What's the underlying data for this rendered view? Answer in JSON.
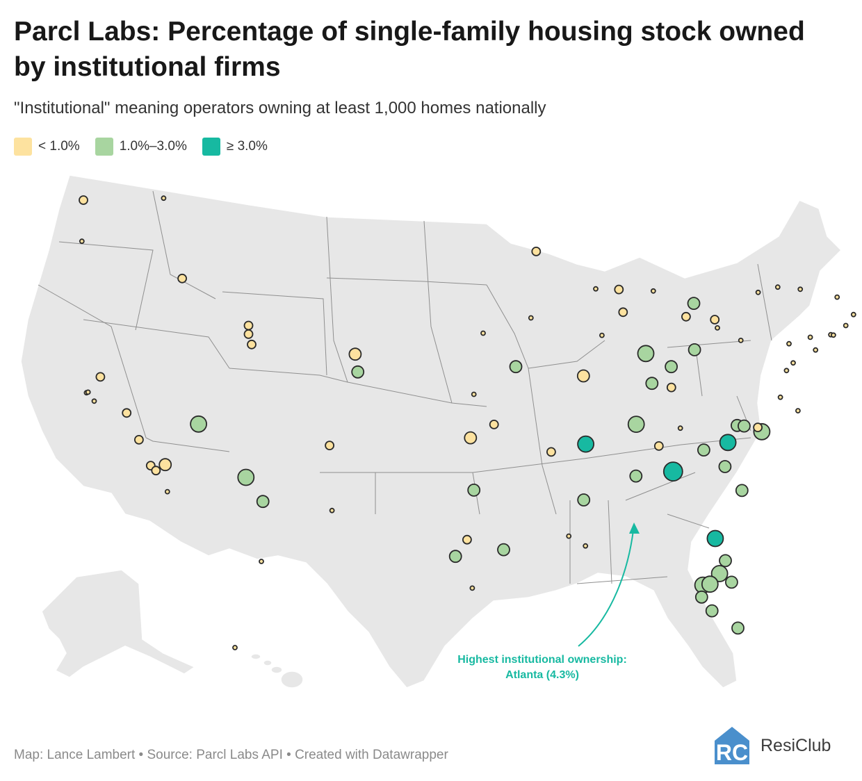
{
  "header": {
    "title": "Parcl Labs: Percentage of single-family housing stock owned by institutional firms",
    "subtitle": "\"Institutional\" meaning operators owning at least 1,000 homes nationally"
  },
  "legend": [
    {
      "label": "< 1.0%",
      "color": "#fde29f"
    },
    {
      "label": "1.0%–3.0%",
      "color": "#a8d5a0"
    },
    {
      "label": "≥ 3.0%",
      "color": "#17b9a1"
    }
  ],
  "annotation": {
    "line1": "Highest institutional ownership:",
    "line2": "Atlanta (4.3%)",
    "color": "#17b9a1"
  },
  "footer": {
    "credits": "Map: Lance Lambert • Source: Parcl Labs API • Created with Datawrapper",
    "brand": "ResiClub",
    "brand_color": "#4a8fcc"
  },
  "map": {
    "land_color": "#e7e7e7",
    "border_color": "#8f8f8f",
    "bucket_colors": {
      "low": "#fde29f",
      "mid": "#a8d5a0",
      "high": "#17b9a1"
    }
  },
  "chart_data": {
    "type": "bubble-map",
    "title": "Parcl Labs: Percentage of single-family housing stock owned by institutional firms",
    "value_unit": "% of single-family housing stock",
    "highlight": {
      "market": "Atlanta",
      "value": 4.3
    },
    "points": [
      {
        "lon": -122.6,
        "lat": 47.6,
        "bucket": "low",
        "size": "small"
      },
      {
        "lon": -117.4,
        "lat": 47.7,
        "bucket": "low",
        "size": "tiny"
      },
      {
        "lon": -122.7,
        "lat": 45.5,
        "bucket": "low",
        "size": "tiny"
      },
      {
        "lon": -116.2,
        "lat": 43.6,
        "bucket": "low",
        "size": "small"
      },
      {
        "lon": -111.9,
        "lat": 41.2,
        "bucket": "low",
        "size": "small"
      },
      {
        "lon": -111.9,
        "lat": 40.76,
        "bucket": "low",
        "size": "small"
      },
      {
        "lon": -111.7,
        "lat": 40.23,
        "bucket": "low",
        "size": "small"
      },
      {
        "lon": -121.5,
        "lat": 38.58,
        "bucket": "low",
        "size": "small"
      },
      {
        "lon": -122.4,
        "lat": 37.77,
        "bucket": "low",
        "size": "tiny"
      },
      {
        "lon": -121.9,
        "lat": 37.34,
        "bucket": "low",
        "size": "tiny"
      },
      {
        "lon": -122.3,
        "lat": 37.8,
        "bucket": "low",
        "size": "tiny"
      },
      {
        "lon": -119.8,
        "lat": 36.74,
        "bucket": "low",
        "size": "small"
      },
      {
        "lon": -119.0,
        "lat": 35.37,
        "bucket": "low",
        "size": "small"
      },
      {
        "lon": -118.24,
        "lat": 34.05,
        "bucket": "low",
        "size": "small"
      },
      {
        "lon": -117.9,
        "lat": 33.8,
        "bucket": "low",
        "size": "small"
      },
      {
        "lon": -117.3,
        "lat": 34.1,
        "bucket": "low",
        "size": "medium"
      },
      {
        "lon": -117.16,
        "lat": 32.72,
        "bucket": "low",
        "size": "tiny"
      },
      {
        "lon": -115.14,
        "lat": 36.17,
        "bucket": "mid",
        "size": "large"
      },
      {
        "lon": -112.07,
        "lat": 33.45,
        "bucket": "mid",
        "size": "large"
      },
      {
        "lon": -110.97,
        "lat": 32.22,
        "bucket": "mid",
        "size": "medium"
      },
      {
        "lon": -106.65,
        "lat": 35.08,
        "bucket": "low",
        "size": "small"
      },
      {
        "lon": -106.49,
        "lat": 31.76,
        "bucket": "low",
        "size": "tiny"
      },
      {
        "lon": -104.99,
        "lat": 39.74,
        "bucket": "low",
        "size": "medium"
      },
      {
        "lon": -104.82,
        "lat": 38.83,
        "bucket": "mid",
        "size": "medium"
      },
      {
        "lon": -96.7,
        "lat": 40.81,
        "bucket": "low",
        "size": "tiny"
      },
      {
        "lon": -97.3,
        "lat": 37.69,
        "bucket": "low",
        "size": "tiny"
      },
      {
        "lon": -94.58,
        "lat": 39.1,
        "bucket": "mid",
        "size": "medium"
      },
      {
        "lon": -97.52,
        "lat": 35.47,
        "bucket": "low",
        "size": "medium"
      },
      {
        "lon": -95.99,
        "lat": 36.15,
        "bucket": "low",
        "size": "small"
      },
      {
        "lon": -97.3,
        "lat": 32.8,
        "bucket": "mid",
        "size": "medium"
      },
      {
        "lon": -97.74,
        "lat": 30.27,
        "bucket": "low",
        "size": "small"
      },
      {
        "lon": -98.49,
        "lat": 29.42,
        "bucket": "mid",
        "size": "medium"
      },
      {
        "lon": -95.37,
        "lat": 29.76,
        "bucket": "mid",
        "size": "medium"
      },
      {
        "lon": -97.4,
        "lat": 27.8,
        "bucket": "low",
        "size": "tiny"
      },
      {
        "lon": -93.6,
        "lat": 41.59,
        "bucket": "low",
        "size": "tiny"
      },
      {
        "lon": -93.26,
        "lat": 44.98,
        "bucket": "low",
        "size": "small"
      },
      {
        "lon": -92.29,
        "lat": 34.75,
        "bucket": "low",
        "size": "small"
      },
      {
        "lon": -90.05,
        "lat": 35.15,
        "bucket": "high",
        "size": "large"
      },
      {
        "lon": -90.18,
        "lat": 32.3,
        "bucket": "mid",
        "size": "medium"
      },
      {
        "lon": -91.15,
        "lat": 30.45,
        "bucket": "low",
        "size": "tiny"
      },
      {
        "lon": -90.07,
        "lat": 29.95,
        "bucket": "low",
        "size": "tiny"
      },
      {
        "lon": -90.2,
        "lat": 38.63,
        "bucket": "low",
        "size": "medium"
      },
      {
        "lon": -89.0,
        "lat": 40.7,
        "bucket": "low",
        "size": "tiny"
      },
      {
        "lon": -87.63,
        "lat": 41.88,
        "bucket": "low",
        "size": "small"
      },
      {
        "lon": -89.4,
        "lat": 43.07,
        "bucket": "low",
        "size": "tiny"
      },
      {
        "lon": -87.9,
        "lat": 43.04,
        "bucket": "low",
        "size": "small"
      },
      {
        "lon": -86.16,
        "lat": 39.77,
        "bucket": "mid",
        "size": "large"
      },
      {
        "lon": -85.67,
        "lat": 42.96,
        "bucket": "low",
        "size": "tiny"
      },
      {
        "lon": -83.05,
        "lat": 42.33,
        "bucket": "mid",
        "size": "medium"
      },
      {
        "lon": -83.55,
        "lat": 41.65,
        "bucket": "low",
        "size": "small"
      },
      {
        "lon": -84.51,
        "lat": 39.1,
        "bucket": "mid",
        "size": "medium"
      },
      {
        "lon": -83.0,
        "lat": 39.96,
        "bucket": "mid",
        "size": "medium"
      },
      {
        "lon": -81.69,
        "lat": 41.5,
        "bucket": "low",
        "size": "small"
      },
      {
        "lon": -81.52,
        "lat": 41.08,
        "bucket": "low",
        "size": "tiny"
      },
      {
        "lon": -85.76,
        "lat": 38.25,
        "bucket": "mid",
        "size": "medium"
      },
      {
        "lon": -84.5,
        "lat": 38.04,
        "bucket": "low",
        "size": "small"
      },
      {
        "lon": -86.78,
        "lat": 36.16,
        "bucket": "mid",
        "size": "large"
      },
      {
        "lon": -83.92,
        "lat": 35.96,
        "bucket": "low",
        "size": "tiny"
      },
      {
        "lon": -85.31,
        "lat": 35.05,
        "bucket": "low",
        "size": "small"
      },
      {
        "lon": -86.8,
        "lat": 33.52,
        "bucket": "mid",
        "size": "medium"
      },
      {
        "lon": -84.39,
        "lat": 33.75,
        "bucket": "high",
        "size": "xlarge"
      },
      {
        "lon": -80.84,
        "lat": 35.23,
        "bucket": "high",
        "size": "large"
      },
      {
        "lon": -80.24,
        "lat": 36.1,
        "bucket": "mid",
        "size": "medium"
      },
      {
        "lon": -79.79,
        "lat": 36.07,
        "bucket": "mid",
        "size": "medium"
      },
      {
        "lon": -78.64,
        "lat": 35.78,
        "bucket": "mid",
        "size": "large"
      },
      {
        "lon": -78.9,
        "lat": 36.0,
        "bucket": "low",
        "size": "small"
      },
      {
        "lon": -81.03,
        "lat": 34.0,
        "bucket": "mid",
        "size": "medium"
      },
      {
        "lon": -82.4,
        "lat": 34.85,
        "bucket": "mid",
        "size": "medium"
      },
      {
        "lon": -79.93,
        "lat": 32.78,
        "bucket": "mid",
        "size": "medium"
      },
      {
        "lon": -81.66,
        "lat": 30.33,
        "bucket": "high",
        "size": "large"
      },
      {
        "lon": -81.38,
        "lat": 28.54,
        "bucket": "mid",
        "size": "large"
      },
      {
        "lon": -81.0,
        "lat": 29.2,
        "bucket": "mid",
        "size": "medium"
      },
      {
        "lon": -82.46,
        "lat": 27.95,
        "bucket": "mid",
        "size": "large"
      },
      {
        "lon": -82.0,
        "lat": 28.0,
        "bucket": "mid",
        "size": "large"
      },
      {
        "lon": -80.6,
        "lat": 28.1,
        "bucket": "mid",
        "size": "medium"
      },
      {
        "lon": -82.54,
        "lat": 27.34,
        "bucket": "mid",
        "size": "medium"
      },
      {
        "lon": -81.87,
        "lat": 26.64,
        "bucket": "mid",
        "size": "medium"
      },
      {
        "lon": -80.19,
        "lat": 25.76,
        "bucket": "mid",
        "size": "medium"
      },
      {
        "lon": -77.44,
        "lat": 37.54,
        "bucket": "low",
        "size": "tiny"
      },
      {
        "lon": -76.3,
        "lat": 36.85,
        "bucket": "low",
        "size": "tiny"
      },
      {
        "lon": -77.04,
        "lat": 38.9,
        "bucket": "low",
        "size": "tiny"
      },
      {
        "lon": -76.61,
        "lat": 39.29,
        "bucket": "low",
        "size": "tiny"
      },
      {
        "lon": -75.16,
        "lat": 39.95,
        "bucket": "low",
        "size": "tiny"
      },
      {
        "lon": -75.5,
        "lat": 40.6,
        "bucket": "low",
        "size": "tiny"
      },
      {
        "lon": -76.88,
        "lat": 40.27,
        "bucket": "low",
        "size": "tiny"
      },
      {
        "lon": -80.0,
        "lat": 40.44,
        "bucket": "low",
        "size": "tiny"
      },
      {
        "lon": -74.17,
        "lat": 40.73,
        "bucket": "low",
        "size": "tiny"
      },
      {
        "lon": -74.0,
        "lat": 40.71,
        "bucket": "low",
        "size": "tiny"
      },
      {
        "lon": -73.2,
        "lat": 41.2,
        "bucket": "low",
        "size": "tiny"
      },
      {
        "lon": -72.7,
        "lat": 41.76,
        "bucket": "low",
        "size": "tiny"
      },
      {
        "lon": -71.41,
        "lat": 41.82,
        "bucket": "low",
        "size": "tiny"
      },
      {
        "lon": -71.06,
        "lat": 42.36,
        "bucket": "low",
        "size": "tiny"
      },
      {
        "lon": -71.8,
        "lat": 42.26,
        "bucket": "low",
        "size": "tiny"
      },
      {
        "lon": -73.76,
        "lat": 42.65,
        "bucket": "low",
        "size": "tiny"
      },
      {
        "lon": -76.15,
        "lat": 43.05,
        "bucket": "low",
        "size": "tiny"
      },
      {
        "lon": -77.61,
        "lat": 43.16,
        "bucket": "low",
        "size": "tiny"
      },
      {
        "lon": -78.88,
        "lat": 42.89,
        "bucket": "low",
        "size": "tiny"
      },
      {
        "lon": -149.9,
        "lat": 61.2,
        "bucket": "low",
        "size": "tiny"
      },
      {
        "lon": -157.86,
        "lat": 21.3,
        "bucket": "low",
        "size": "tiny"
      }
    ]
  }
}
